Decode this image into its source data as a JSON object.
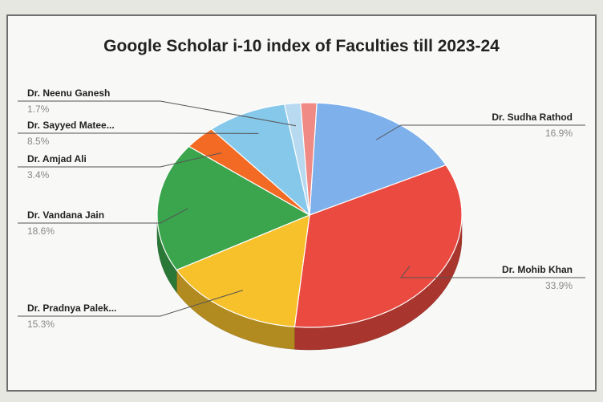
{
  "chart_data": {
    "type": "pie",
    "title": "Google Scholar i-10 index of Faculties till 2023-24",
    "slices": [
      {
        "label": "Dr. Sudha Rathod",
        "percent_label": "16.9%",
        "value": 16.9,
        "color": "#7eb0ec"
      },
      {
        "label": "Dr. Mohib Khan",
        "percent_label": "33.9%",
        "value": 33.9,
        "color": "#ea4a40"
      },
      {
        "label": "Dr. Pradnya Palek...",
        "percent_label": "15.3%",
        "value": 15.3,
        "color": "#f7c12c"
      },
      {
        "label": "Dr. Vandana Jain",
        "percent_label": "18.6%",
        "value": 18.6,
        "color": "#3aa54c"
      },
      {
        "label": "Dr. Amjad Ali",
        "percent_label": "3.4%",
        "value": 3.4,
        "color": "#f36a24"
      },
      {
        "label": "Dr. Sayyed Matee...",
        "percent_label": "8.5%",
        "value": 8.5,
        "color": "#86c8ea"
      },
      {
        "label": "Dr. Neenu Ganesh",
        "percent_label": "1.7%",
        "value": 1.7,
        "color": "#b7daf1"
      },
      {
        "label": "",
        "percent_label": "",
        "value": 1.7,
        "color": "#ef8a84"
      }
    ]
  }
}
